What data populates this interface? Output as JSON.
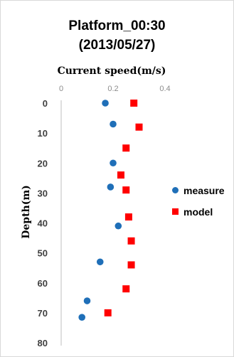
{
  "chart_data": {
    "type": "scatter",
    "title": "Platform_00:30",
    "subtitle": "(2013/05/27)",
    "xlabel": "Current speed(m/s)",
    "ylabel": "Depth(m)",
    "xlim": [
      0,
      0.4
    ],
    "ylim": [
      0,
      80
    ],
    "y_inverted": true,
    "x_axis_position": "top",
    "x_ticks": [
      "0",
      "0.2",
      "0.4"
    ],
    "y_ticks": [
      "0",
      "10",
      "20",
      "30",
      "40",
      "50",
      "60",
      "70",
      "80"
    ],
    "grid": false,
    "legend_position": "right",
    "series": [
      {
        "name": "measure",
        "marker": "circle",
        "color": "#1f6fb8",
        "points": [
          {
            "x": 0.17,
            "y": 0
          },
          {
            "x": 0.2,
            "y": 7
          },
          {
            "x": 0.2,
            "y": 20
          },
          {
            "x": 0.19,
            "y": 28
          },
          {
            "x": 0.22,
            "y": 41
          },
          {
            "x": 0.15,
            "y": 53
          },
          {
            "x": 0.1,
            "y": 66
          },
          {
            "x": 0.08,
            "y": 71.5
          }
        ]
      },
      {
        "name": "model",
        "marker": "square",
        "color": "#ff0000",
        "points": [
          {
            "x": 0.28,
            "y": 0
          },
          {
            "x": 0.3,
            "y": 8
          },
          {
            "x": 0.25,
            "y": 15
          },
          {
            "x": 0.23,
            "y": 24
          },
          {
            "x": 0.25,
            "y": 29
          },
          {
            "x": 0.26,
            "y": 38
          },
          {
            "x": 0.27,
            "y": 46
          },
          {
            "x": 0.27,
            "y": 54
          },
          {
            "x": 0.25,
            "y": 62
          },
          {
            "x": 0.18,
            "y": 70
          }
        ]
      }
    ]
  }
}
